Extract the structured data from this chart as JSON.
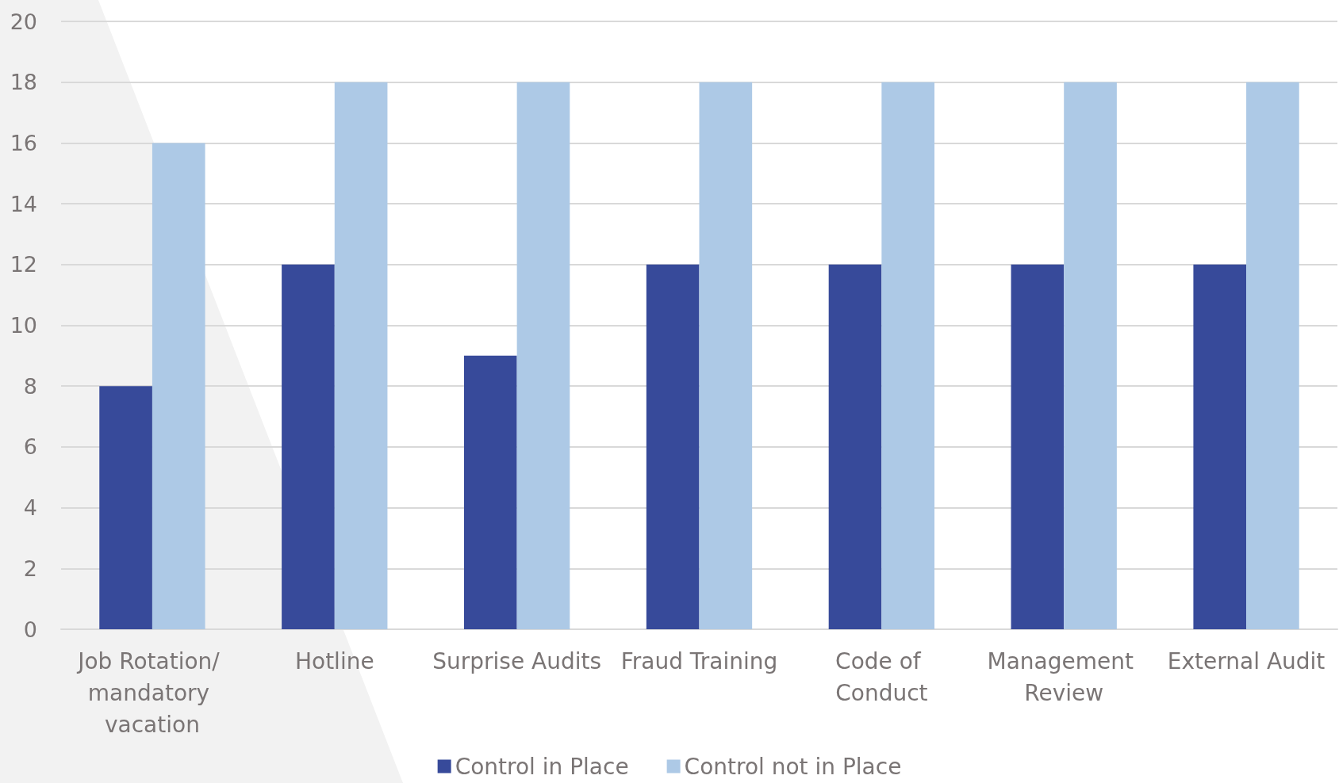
{
  "chart_data": {
    "type": "bar",
    "categories": [
      "Job Rotation/ mandatory vacation",
      "Hotline",
      "Surprise Audits",
      "Fraud Training",
      "Code of Conduct",
      "Management Review",
      "External Audit"
    ],
    "series": [
      {
        "name": "Control in Place",
        "color": "#374a9a",
        "values": [
          8,
          12,
          9,
          12,
          12,
          12,
          12
        ]
      },
      {
        "name": "Control not in Place",
        "color": "#adc9e6",
        "values": [
          16,
          18,
          18,
          18,
          18,
          18,
          18
        ]
      }
    ],
    "ylim": [
      0,
      20
    ],
    "yticks": [
      0,
      2,
      4,
      6,
      8,
      10,
      12,
      14,
      16,
      18,
      20
    ],
    "grid": "y",
    "legend": "bottom"
  }
}
